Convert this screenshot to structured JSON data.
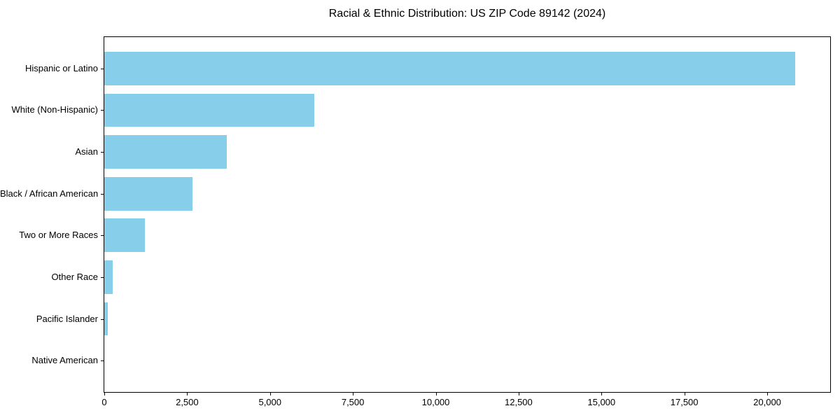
{
  "chart_data": {
    "type": "bar",
    "orientation": "horizontal",
    "title": "Racial & Ethnic Distribution: US ZIP Code 89142 (2024)",
    "categories": [
      "Hispanic or Latino",
      "White (Non-Hispanic)",
      "Asian",
      "Black / African American",
      "Two or More Races",
      "Other Race",
      "Pacific Islander",
      "Native American"
    ],
    "values": [
      20840,
      6330,
      3700,
      2660,
      1220,
      250,
      100,
      0
    ],
    "xlabel": "",
    "ylabel": "",
    "xlim": [
      0,
      21900
    ],
    "x_ticks": [
      0,
      2500,
      5000,
      7500,
      10000,
      12500,
      15000,
      17500,
      20000
    ],
    "x_tick_labels": [
      "0",
      "2,500",
      "5,000",
      "7,500",
      "10,000",
      "12,500",
      "15,000",
      "17,500",
      "20,000"
    ],
    "bar_color": "#87CEEB",
    "grid": false,
    "legend": null,
    "background_color": "#FFFFFF",
    "axis_color": "#000000",
    "text_color": "#000000"
  }
}
